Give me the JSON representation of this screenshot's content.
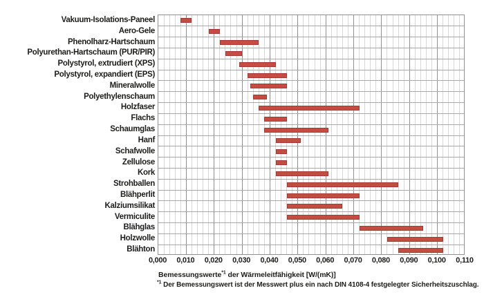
{
  "chart_data": {
    "type": "bar",
    "orientation": "horizontal-range",
    "title": "",
    "grid": "on",
    "legend": "none",
    "xlim": [
      0,
      0.11
    ],
    "x_major_step": 0.01,
    "x_minor_step": 0.002,
    "x_tick_labels": [
      "0,000",
      "0,010",
      "0,020",
      "0,030",
      "0,040",
      "0,050",
      "0,060",
      "0,070",
      "0,080",
      "0,090",
      "0,100",
      "0,110"
    ],
    "categories": [
      "Vakuum-Isolations-Paneel",
      "Aero-Gele",
      "Phenolharz-Hartschaum",
      "Polyurethan-Hartschaum (PUR/PIR)",
      "Polystyrol, extrudiert (XPS)",
      "Polystyrol, expandiert (EPS)",
      "Mineralwolle",
      "Polyethylenschaum",
      "Holzfaser",
      "Flachs",
      "Schaumglas",
      "Hanf",
      "Schafwolle",
      "Zellulose",
      "Kork",
      "Strohballen",
      "Blähperlit",
      "Kalziumsilikat",
      "Vermiculite",
      "Blähglas",
      "Holzwolle",
      "Blähton"
    ],
    "ranges": [
      [
        0.008,
        0.012
      ],
      [
        0.018,
        0.022
      ],
      [
        0.022,
        0.036
      ],
      [
        0.024,
        0.03
      ],
      [
        0.029,
        0.042
      ],
      [
        0.032,
        0.046
      ],
      [
        0.033,
        0.046
      ],
      [
        0.034,
        0.039
      ],
      [
        0.036,
        0.072
      ],
      [
        0.038,
        0.046
      ],
      [
        0.038,
        0.061
      ],
      [
        0.042,
        0.051
      ],
      [
        0.042,
        0.046
      ],
      [
        0.042,
        0.046
      ],
      [
        0.042,
        0.061
      ],
      [
        0.046,
        0.086
      ],
      [
        0.046,
        0.072
      ],
      [
        0.046,
        0.066
      ],
      [
        0.046,
        0.072
      ],
      [
        0.072,
        0.095
      ],
      [
        0.082,
        0.102
      ],
      [
        0.086,
        0.102
      ]
    ],
    "xlabel": {
      "main": "Bemessungswerte",
      "sup": "*1",
      "rest": " der Wärmeleitfähigkeit [W/(mK)]"
    },
    "footnote": {
      "sup": "*1",
      "text": " Der Bemessungswert ist der Messwert plus ein nach DIN 4108-4 festgelegter Sicherheitszuschlag."
    },
    "colors": {
      "bar_fill": "#c44c42",
      "bar_border": "#a03a33",
      "grid_minor": "#d6d6d6",
      "grid_major": "#8f8f8f",
      "row_line": "#a8a8a8",
      "text": "#1d1d1b"
    }
  }
}
